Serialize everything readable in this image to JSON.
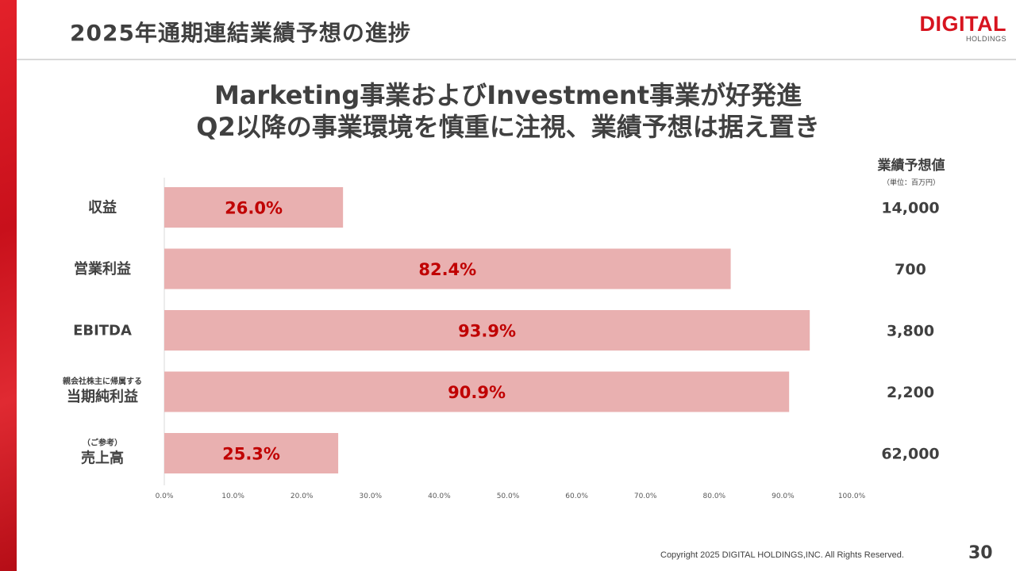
{
  "header": {
    "title": "2025年通期連結業績予想の進捗",
    "logo_main": "DIGITAL",
    "logo_sub": "HOLDINGS"
  },
  "headline": {
    "line1": "Marketing事業およびInvestment事業が好発進",
    "line2": "Q2以降の事業環境を慎重に注視、業績予想は据え置き"
  },
  "forecast_column": {
    "title": "業績予想値",
    "unit": "（単位：百万円）"
  },
  "chart_data": {
    "type": "bar",
    "orientation": "horizontal",
    "categories": [
      {
        "sub": "",
        "main": "収益"
      },
      {
        "sub": "",
        "main": "営業利益"
      },
      {
        "sub": "",
        "main": "EBITDA"
      },
      {
        "sub": "親会社株主に帰属する",
        "main": "当期純利益"
      },
      {
        "sub": "（ご参考）",
        "main": "売上高"
      }
    ],
    "values": [
      26.0,
      82.4,
      93.9,
      90.9,
      25.3
    ],
    "value_labels": [
      "26.0%",
      "82.4%",
      "93.9%",
      "90.9%",
      "25.3%"
    ],
    "forecast_values": [
      "14,000",
      "700",
      "3,800",
      "2,200",
      "62,000"
    ],
    "xlim": [
      0,
      100
    ],
    "xticks": [
      "0.0%",
      "10.0%",
      "20.0%",
      "30.0%",
      "40.0%",
      "50.0%",
      "60.0%",
      "70.0%",
      "80.0%",
      "90.0%",
      "100.0%"
    ],
    "grid": false,
    "bar_color": "#e9b0b0",
    "value_label_color": "#c00000"
  },
  "footer": {
    "copyright": "Copyright 2025 DIGITAL HOLDINGS,INC. All Rights Reserved.",
    "page_number": "30"
  },
  "colors": {
    "brand_red": "#d7141f",
    "text": "#404040"
  }
}
